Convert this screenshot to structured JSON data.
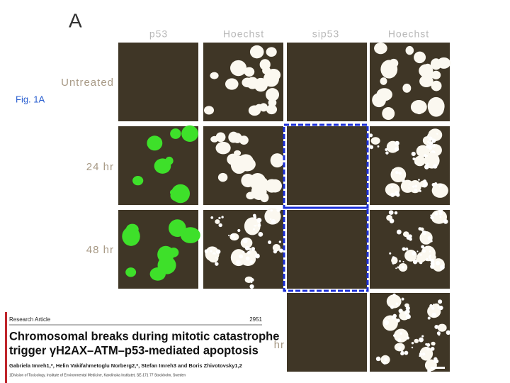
{
  "slide": {
    "panel_letter": "A",
    "fig_label": "Fig. 1A",
    "column_headers": [
      "p53",
      "Hoechst",
      "sip53",
      "Hoechst"
    ],
    "row_labels": [
      "Untreated",
      "24 hr",
      "48 hr",
      "hr"
    ]
  },
  "paper": {
    "section": "Research Article",
    "page": "2951",
    "title_lines": [
      "Chromosomal breaks during mitotic catastrophe",
      "trigger γH2AX–ATM–p53-mediated apoptosis"
    ],
    "authors": "Gabriela Imreh1,*, Helin Vakifahmetoglu Norberg2,*, Stefan Imreh3 and Boris Zhivotovsky1,2",
    "affiliation": "1Division of Toxicology, Institute of Environmental Medicine, Karolinska Institutet, SE-171 77 Stockholm, Sweden"
  }
}
